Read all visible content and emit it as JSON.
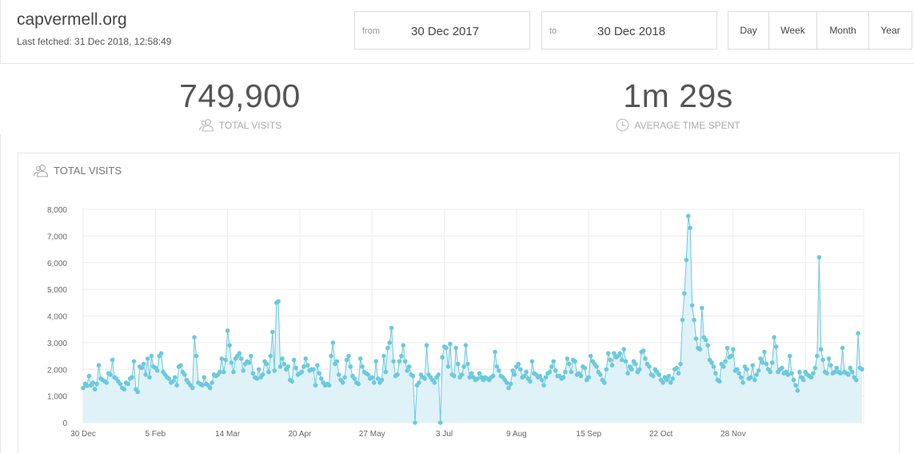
{
  "header": {
    "site_name": "capvermell.org",
    "last_fetched": "Last fetched: 31 Dec 2018, 12:58:49",
    "from": {
      "label": "from",
      "value": "30 Dec 2017"
    },
    "to": {
      "label": "to",
      "value": "30 Dec 2018"
    },
    "periods": [
      "Day",
      "Week",
      "Month",
      "Year"
    ]
  },
  "stats": {
    "visits": {
      "value": "749,900",
      "label": "TOTAL VISITS",
      "icon": "users-icon"
    },
    "time": {
      "value": "1m 29s",
      "label": "AVERAGE TIME SPENT",
      "icon": "clock-icon"
    }
  },
  "chart_panel": {
    "title": "TOTAL VISITS",
    "icon": "users-icon"
  },
  "colors": {
    "line": "#6cc9dc",
    "fill": "#dff2f8",
    "grid": "#ececec",
    "axis_text": "#666666"
  },
  "chart_data": {
    "type": "area",
    "ylim": [
      0,
      8000
    ],
    "yticks": [
      0,
      1000,
      2000,
      3000,
      4000,
      5000,
      6000,
      7000,
      8000
    ],
    "ytick_labels": [
      "0",
      "1,000",
      "2,000",
      "3,000",
      "4,000",
      "5,000",
      "6,000",
      "7,000",
      "8,000"
    ],
    "xtick_labels": [
      "30 Dec",
      "5 Feb",
      "14 Mar",
      "20 Apr",
      "27 May",
      "3 Jul",
      "9 Aug",
      "15 Sep",
      "22 Oct",
      "28 Nov"
    ],
    "grid": true,
    "legend": "none",
    "series": [
      {
        "values": [
          1300,
          1450,
          1380,
          1750,
          1400,
          1500,
          1250,
          1450,
          2150,
          1650,
          1600,
          1550,
          1500,
          1850,
          1800,
          2350,
          1700,
          1650,
          1550,
          1450,
          1300,
          1250,
          1500,
          1450,
          1650,
          1700,
          2300,
          1250,
          1150,
          2100,
          2050,
          2200,
          1800,
          2400,
          1700,
          2500,
          2100,
          2050,
          1950,
          2500,
          2600,
          1900,
          1800,
          1700,
          1650,
          1500,
          1550,
          1700,
          1400,
          2100,
          2150,
          1900,
          1800,
          1600,
          1500,
          1400,
          1300,
          3200,
          2500,
          1500,
          1450,
          1400,
          1700,
          1450,
          1400,
          1300,
          1500,
          1800,
          1750,
          1800,
          1900,
          2400,
          1900,
          2350,
          3450,
          2900,
          2250,
          1900,
          2400,
          2500,
          2600,
          2400,
          1950,
          2200,
          2300,
          2250,
          2500,
          1850,
          1700,
          1650,
          2000,
          1700,
          1800,
          2300,
          2200,
          1900,
          2500,
          3400,
          1950,
          4500,
          4550,
          2100,
          2400,
          2200,
          2000,
          2100,
          1600,
          1550,
          2350,
          2050,
          1800,
          1850,
          1900,
          2100,
          2400,
          2150,
          1950,
          2000,
          2000,
          1400,
          2150,
          1850,
          1650,
          1500,
          1400,
          1450,
          1400,
          2500,
          3000,
          2200,
          2300,
          1800,
          1600,
          1500,
          1700,
          2350,
          2500,
          2100,
          1750,
          1650,
          1500,
          1450,
          2400,
          2100,
          1900,
          1850,
          1800,
          1650,
          1700,
          1500,
          2300,
          1650,
          1500,
          1600,
          2500,
          1900,
          2800,
          3000,
          3550,
          2300,
          1750,
          1800,
          2300,
          2500,
          2900,
          2300,
          1950,
          2100,
          1800,
          1750,
          0,
          1400,
          1500,
          1800,
          1700,
          1650,
          2900,
          1800,
          1700,
          1600,
          1500,
          1700,
          1800,
          0,
          2450,
          2850,
          2800,
          2100,
          2950,
          1800,
          1750,
          2800,
          2200,
          1700,
          1800,
          2100,
          2900,
          2200,
          1700,
          1850,
          1700,
          1600,
          1650,
          1850,
          1700,
          1600,
          1700,
          1650,
          1600,
          1700,
          1750,
          2650,
          2100,
          1950,
          1750,
          1700,
          1600,
          1500,
          1300,
          1450,
          1950,
          1800,
          2100,
          2200,
          2000,
          1700,
          1750,
          1900,
          1650,
          1550,
          2300,
          1850,
          1800,
          1700,
          1750,
          1600,
          1400,
          1700,
          1850,
          1900,
          2100,
          2300,
          1950,
          1750,
          1750,
          1650,
          1700,
          1900,
          2400,
          2200,
          1900,
          2350,
          2300,
          1800,
          1850,
          1750,
          2100,
          2050,
          1600,
          1700,
          2500,
          2300,
          2200,
          2100,
          1900,
          1800,
          1600,
          1500,
          2000,
          2600,
          2350,
          2150,
          2600,
          2450,
          2500,
          2600,
          2350,
          2750,
          2300,
          1850,
          2100,
          2000,
          2300,
          2200,
          1900,
          2000,
          2650,
          2700,
          2400,
          2200,
          2100,
          1800,
          1750,
          2000,
          1900,
          1800,
          1600,
          1500,
          1700,
          1600,
          1750,
          1500,
          1650,
          2000,
          2050,
          1850,
          2200,
          3850,
          4850,
          6100,
          7750,
          7300,
          4400,
          3850,
          3150,
          2800,
          2750,
          4300,
          3200,
          3100,
          2900,
          2350,
          2250,
          2100,
          1850,
          1600,
          1550,
          2200,
          2100,
          2300,
          2800,
          2450,
          2500,
          2750,
          1950,
          2000,
          1850,
          1700,
          1500,
          2100,
          2000,
          1650,
          1700,
          2150,
          1600,
          1800,
          1950,
          2400,
          2250,
          2650,
          2200,
          2000,
          1900,
          2250,
          3200,
          2850,
          1900,
          2000,
          2050,
          1850,
          1900,
          1800,
          2500,
          1850,
          1600,
          1400,
          1200,
          1900,
          1700,
          1600,
          1900,
          1800,
          1750,
          1700,
          1850,
          2050,
          2500,
          6200,
          2750,
          2350,
          1900,
          1850,
          2400,
          2150,
          1850,
          1900,
          2050,
          1900,
          1850,
          2800,
          1900,
          1850,
          1800,
          2050,
          1900,
          1700,
          1600,
          3350,
          2050,
          2000
        ]
      }
    ]
  }
}
